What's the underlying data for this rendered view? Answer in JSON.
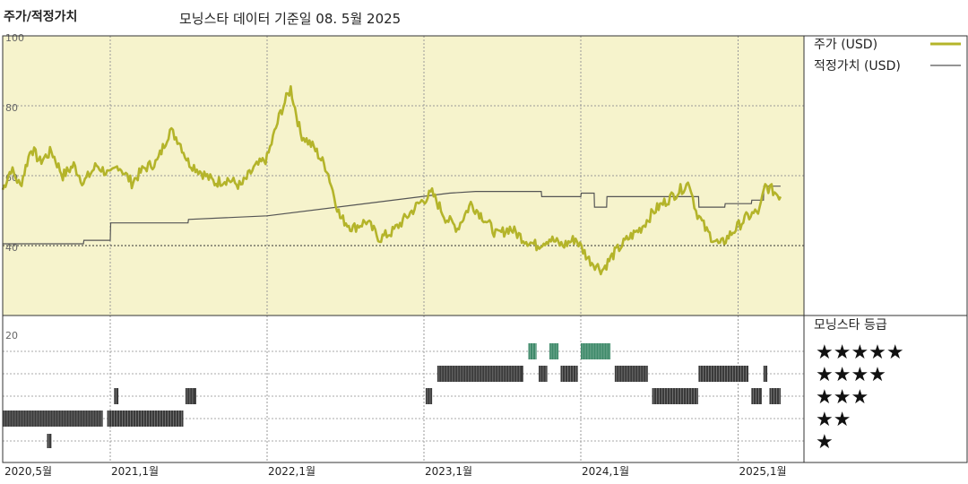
{
  "title": "주가/적정가치",
  "subtitle": "모닝스타 데이터 기준일 08. 5월 2025",
  "legend": {
    "price_label": "주가 (USD)",
    "fair_label": "적정가치 (USD)",
    "price_color": "#b4b42a",
    "fair_color": "#555555",
    "rating_title": "모닝스타 등급"
  },
  "colors": {
    "upper_bg": "#f6f3cc",
    "rating_bar": "#3a3a3a",
    "rating_bar_top": "#3f8a6a"
  },
  "chart_data": [
    {
      "type": "line",
      "x_range": [
        "2020-05",
        "2025-06"
      ],
      "ylim": [
        20,
        100
      ],
      "yticks": [
        "100",
        "80",
        "60",
        "40",
        "20"
      ],
      "x_ticks": [
        "2020,5월",
        "2021,1월",
        "2022,1월",
        "2023,1월",
        "2024,1월",
        "2025,1월"
      ],
      "grid": true,
      "legend_position": "right",
      "series": [
        {
          "name": "주가 (USD)",
          "points": [
            [
              "2020-05-01",
              56
            ],
            [
              "2020-05-20",
              62
            ],
            [
              "2020-06-10",
              57
            ],
            [
              "2020-07-05",
              68
            ],
            [
              "2020-07-25",
              64
            ],
            [
              "2020-08-20",
              67
            ],
            [
              "2020-09-15",
              60
            ],
            [
              "2020-10-10",
              63
            ],
            [
              "2020-11-01",
              58
            ],
            [
              "2020-12-01",
              63
            ],
            [
              "2021-01-01",
              60
            ],
            [
              "2021-01-20",
              63
            ],
            [
              "2021-02-20",
              58
            ],
            [
              "2021-03-20",
              62
            ],
            [
              "2021-04-20",
              64
            ],
            [
              "2021-05-20",
              73
            ],
            [
              "2021-06-10",
              70
            ],
            [
              "2021-07-01",
              64
            ],
            [
              "2021-08-01",
              61
            ],
            [
              "2021-09-01",
              58
            ],
            [
              "2021-10-01",
              59
            ],
            [
              "2021-11-01",
              57
            ],
            [
              "2021-12-01",
              62
            ],
            [
              "2022-01-01",
              65
            ],
            [
              "2022-02-01",
              78
            ],
            [
              "2022-02-25",
              85
            ],
            [
              "2022-03-20",
              72
            ],
            [
              "2022-04-20",
              68
            ],
            [
              "2022-05-20",
              62
            ],
            [
              "2022-06-20",
              48
            ],
            [
              "2022-07-20",
              45
            ],
            [
              "2022-08-20",
              47
            ],
            [
              "2022-09-20",
              42
            ],
            [
              "2022-10-20",
              44
            ],
            [
              "2022-11-20",
              48
            ],
            [
              "2022-12-20",
              52
            ],
            [
              "2023-01-20",
              55
            ],
            [
              "2023-02-20",
              48
            ],
            [
              "2023-03-20",
              45
            ],
            [
              "2023-04-20",
              52
            ],
            [
              "2023-05-20",
              48
            ],
            [
              "2023-06-20",
              43
            ],
            [
              "2023-07-20",
              45
            ],
            [
              "2023-08-20",
              42
            ],
            [
              "2023-09-20",
              40
            ],
            [
              "2023-10-20",
              42
            ],
            [
              "2023-11-20",
              40
            ],
            [
              "2023-12-20",
              42
            ],
            [
              "2024-01-20",
              36
            ],
            [
              "2024-02-20",
              33
            ],
            [
              "2024-03-20",
              38
            ],
            [
              "2024-04-20",
              42
            ],
            [
              "2024-05-20",
              45
            ],
            [
              "2024-06-20",
              50
            ],
            [
              "2024-07-20",
              53
            ],
            [
              "2024-08-20",
              56
            ],
            [
              "2024-09-10",
              58
            ],
            [
              "2024-09-25",
              50
            ],
            [
              "2024-10-20",
              44
            ],
            [
              "2024-11-20",
              40
            ],
            [
              "2024-12-20",
              44
            ],
            [
              "2025-01-20",
              48
            ],
            [
              "2025-02-20",
              50
            ],
            [
              "2025-03-05",
              57
            ],
            [
              "2025-03-20",
              56
            ],
            [
              "2025-04-10",
              54
            ]
          ]
        },
        {
          "name": "적정가치 (USD)",
          "points": [
            [
              "2020-05-01",
              40.5
            ],
            [
              "2020-11-01",
              40.5
            ],
            [
              "2020-11-02",
              41.5
            ],
            [
              "2021-01-01",
              41.5
            ],
            [
              "2021-01-02",
              46.5
            ],
            [
              "2021-07-01",
              46.5
            ],
            [
              "2021-07-02",
              47.5
            ],
            [
              "2022-01-01",
              48.5
            ],
            [
              "2023-03-01",
              55
            ],
            [
              "2023-05-01",
              55.5
            ],
            [
              "2023-10-01",
              55.5
            ],
            [
              "2023-10-02",
              54
            ],
            [
              "2024-01-01",
              54
            ],
            [
              "2024-01-02",
              55
            ],
            [
              "2024-02-01",
              55
            ],
            [
              "2024-02-02",
              51
            ],
            [
              "2024-03-01",
              51
            ],
            [
              "2024-03-02",
              54
            ],
            [
              "2024-10-01",
              54
            ],
            [
              "2024-10-02",
              51
            ],
            [
              "2024-12-01",
              51
            ],
            [
              "2024-12-02",
              52
            ],
            [
              "2025-02-01",
              52
            ],
            [
              "2025-02-02",
              53
            ],
            [
              "2025-03-01",
              53
            ],
            [
              "2025-03-02",
              57
            ],
            [
              "2025-04-10",
              57
            ]
          ]
        }
      ]
    },
    {
      "type": "bar",
      "title": "모닝스타 등급",
      "levels": [
        "★★★★★",
        "★★★★",
        "★★★",
        "★★",
        "★"
      ],
      "segments": [
        {
          "stars": 2,
          "start": "2020-05-01",
          "end": "2020-12-15"
        },
        {
          "stars": 1,
          "start": "2020-08-10",
          "end": "2020-08-20"
        },
        {
          "stars": 2,
          "start": "2020-12-25",
          "end": "2021-06-20"
        },
        {
          "stars": 3,
          "start": "2021-01-10",
          "end": "2021-01-20"
        },
        {
          "stars": 3,
          "start": "2021-06-25",
          "end": "2021-07-20"
        },
        {
          "stars": 3,
          "start": "2023-01-05",
          "end": "2023-01-20"
        },
        {
          "stars": 4,
          "start": "2023-02-01",
          "end": "2023-08-20"
        },
        {
          "stars": 5,
          "start": "2023-09-01",
          "end": "2023-09-20"
        },
        {
          "stars": 4,
          "start": "2023-09-25",
          "end": "2023-10-15"
        },
        {
          "stars": 5,
          "start": "2023-10-20",
          "end": "2023-11-10"
        },
        {
          "stars": 4,
          "start": "2023-11-15",
          "end": "2023-12-25"
        },
        {
          "stars": 5,
          "start": "2024-01-01",
          "end": "2024-03-10"
        },
        {
          "stars": 4,
          "start": "2024-03-20",
          "end": "2024-06-05"
        },
        {
          "stars": 3,
          "start": "2024-06-15",
          "end": "2024-09-30"
        },
        {
          "stars": 4,
          "start": "2024-10-01",
          "end": "2025-01-25"
        },
        {
          "stars": 3,
          "start": "2025-02-01",
          "end": "2025-02-25"
        },
        {
          "stars": 4,
          "start": "2025-03-01",
          "end": "2025-03-10"
        },
        {
          "stars": 3,
          "start": "2025-03-15",
          "end": "2025-04-10"
        }
      ]
    }
  ]
}
